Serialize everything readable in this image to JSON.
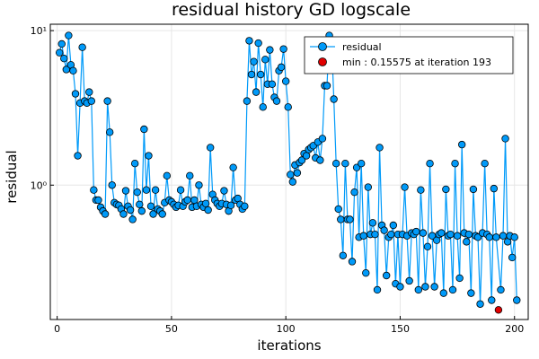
{
  "chart_data": {
    "type": "scatter",
    "title": "residual history GD logscale",
    "xlabel": "iterations",
    "ylabel": "residual",
    "xlim": [
      -3,
      206
    ],
    "ylim": [
      0.135,
      11
    ],
    "yscale": "log",
    "grid": true,
    "legend_position": "top-right",
    "x_ticks": [
      0,
      50,
      100,
      150,
      200
    ],
    "x_tick_labels": [
      "0",
      "50",
      "100",
      "150",
      "200"
    ],
    "y_ticks": [
      1,
      10
    ],
    "y_tick_labels": [
      "10⁰",
      "10¹"
    ],
    "series": [
      {
        "name": "residual",
        "color": "#009af9",
        "marker": "circle",
        "line": true,
        "x": [
          1,
          2,
          3,
          4,
          5,
          6,
          7,
          8,
          9,
          10,
          11,
          12,
          13,
          14,
          15,
          16,
          17,
          18,
          19,
          20,
          21,
          22,
          23,
          24,
          25,
          26,
          27,
          28,
          29,
          30,
          31,
          32,
          33,
          34,
          35,
          36,
          37,
          38,
          39,
          40,
          41,
          42,
          43,
          44,
          45,
          46,
          47,
          48,
          49,
          50,
          51,
          52,
          53,
          54,
          55,
          56,
          57,
          58,
          59,
          60,
          61,
          62,
          63,
          64,
          65,
          66,
          67,
          68,
          69,
          70,
          71,
          72,
          73,
          74,
          75,
          76,
          77,
          78,
          79,
          80,
          81,
          82,
          83,
          84,
          85,
          86,
          87,
          88,
          89,
          90,
          91,
          92,
          93,
          94,
          95,
          96,
          97,
          98,
          99,
          100,
          101,
          102,
          103,
          104,
          105,
          106,
          107,
          108,
          109,
          110,
          111,
          112,
          113,
          114,
          115,
          116,
          117,
          118,
          119,
          120,
          121,
          122,
          123,
          124,
          125,
          126,
          127,
          128,
          129,
          130,
          131,
          132,
          133,
          134,
          135,
          136,
          137,
          138,
          139,
          140,
          141,
          142,
          143,
          144,
          145,
          146,
          147,
          148,
          149,
          150,
          151,
          152,
          153,
          154,
          155,
          156,
          157,
          158,
          159,
          160,
          161,
          162,
          163,
          164,
          165,
          166,
          167,
          168,
          169,
          170,
          171,
          172,
          173,
          174,
          175,
          176,
          177,
          178,
          179,
          180,
          181,
          182,
          183,
          184,
          185,
          186,
          187,
          188,
          189,
          190,
          191,
          192,
          194,
          195,
          196,
          197,
          198,
          199,
          200,
          201
        ],
        "y": [
          7.2,
          8.2,
          6.6,
          5.6,
          9.3,
          6.0,
          5.5,
          3.9,
          1.55,
          3.4,
          7.8,
          3.5,
          3.4,
          4.0,
          3.5,
          0.93,
          0.8,
          0.8,
          0.72,
          0.68,
          0.65,
          3.5,
          2.2,
          1.0,
          0.77,
          0.75,
          0.74,
          0.7,
          0.65,
          0.92,
          0.73,
          0.69,
          0.6,
          1.38,
          0.9,
          0.75,
          0.68,
          2.3,
          0.93,
          1.55,
          0.73,
          0.65,
          0.93,
          0.7,
          0.68,
          0.65,
          0.77,
          1.15,
          0.8,
          0.78,
          0.75,
          0.72,
          0.74,
          0.93,
          0.73,
          0.78,
          0.8,
          1.15,
          0.72,
          0.8,
          0.73,
          1.0,
          0.75,
          0.72,
          0.76,
          0.69,
          1.75,
          0.87,
          0.8,
          0.76,
          0.73,
          0.76,
          0.92,
          0.75,
          0.68,
          0.74,
          1.3,
          0.8,
          0.82,
          0.75,
          0.7,
          0.73,
          3.5,
          8.6,
          5.2,
          6.3,
          4.0,
          8.3,
          5.2,
          3.2,
          6.5,
          4.5,
          7.5,
          4.5,
          3.7,
          3.5,
          5.5,
          5.8,
          7.6,
          4.7,
          3.2,
          1.17,
          1.05,
          1.35,
          1.2,
          1.4,
          1.45,
          1.6,
          1.55,
          1.7,
          1.75,
          1.8,
          1.5,
          1.9,
          1.45,
          2.0,
          4.4,
          4.4,
          9.3,
          8.6,
          3.6,
          1.38,
          0.7,
          0.6,
          0.35,
          1.38,
          0.6,
          0.6,
          0.32,
          0.9,
          1.3,
          0.46,
          1.38,
          0.47,
          0.27,
          0.97,
          0.48,
          0.57,
          0.48,
          0.21,
          1.75,
          0.55,
          0.51,
          0.26,
          0.46,
          0.48,
          0.55,
          0.23,
          0.48,
          0.22,
          0.48,
          0.97,
          0.47,
          0.24,
          0.49,
          0.48,
          0.5,
          0.21,
          0.93,
          0.49,
          0.22,
          0.4,
          1.38,
          0.47,
          0.22,
          0.44,
          0.48,
          0.49,
          0.2,
          0.94,
          0.47,
          0.48,
          0.21,
          1.38,
          0.47,
          0.25,
          1.83,
          0.49,
          0.43,
          0.48,
          0.2,
          0.94,
          0.47,
          0.46,
          0.17,
          0.49,
          1.38,
          0.48,
          0.46,
          0.18,
          0.95,
          0.46,
          0.21,
          0.47,
          2.0,
          0.43,
          0.47,
          0.34,
          0.46,
          0.18
        ]
      },
      {
        "name": "min : 0.15575 at iteration 193",
        "color": "#e10000",
        "marker": "circle",
        "line": false,
        "x": [
          193
        ],
        "y": [
          0.15575
        ]
      }
    ]
  }
}
